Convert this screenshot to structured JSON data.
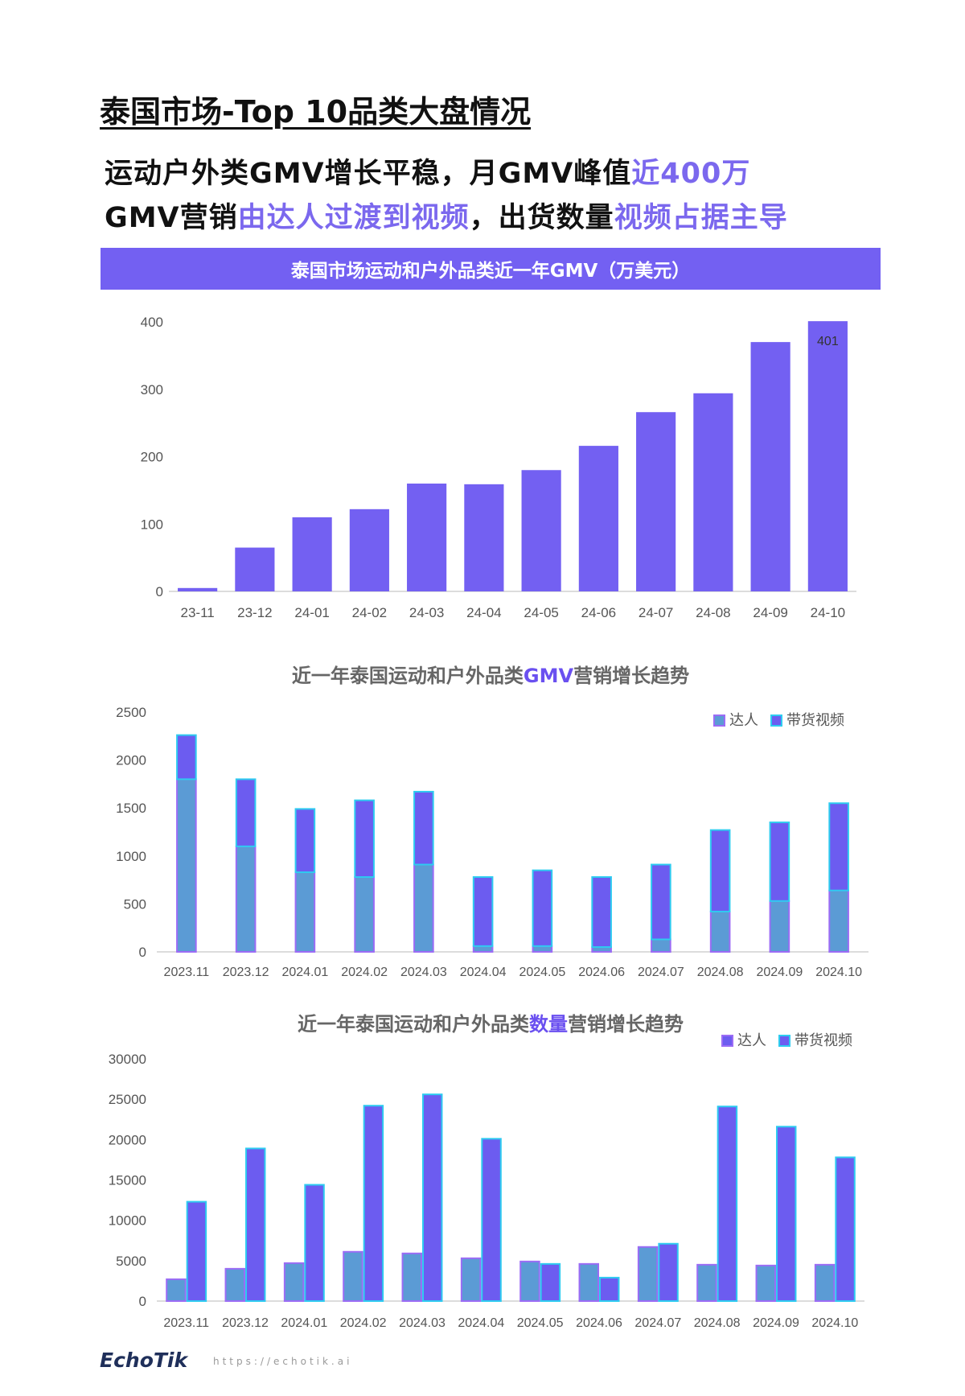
{
  "page": {
    "title": "泰国市场-Top 10品类大盘情况",
    "headline1_a": "运动户外类GMV增长平稳，月GMV峰值",
    "headline1_b": "近400万",
    "headline2_a": "GMV营销",
    "headline2_b": "由达人过渡到视频",
    "headline2_c": "，出货数量",
    "headline2_d": "视频占据主导",
    "footer_logo": "EchoTik",
    "footer_url": "https://echotik.ai"
  },
  "colors": {
    "primary": "#7360f2",
    "talent": "#5b9bd5",
    "video": "#6c5cf0",
    "talent_border": "#9b6cf5",
    "video_border": "#2ecbf0"
  },
  "chart_data": [
    {
      "type": "bar",
      "title": "泰国市场运动和户外品类近一年GMV（万美元）",
      "categories": [
        "23-11",
        "23-12",
        "24-01",
        "24-02",
        "24-03",
        "24-04",
        "24-05",
        "24-06",
        "24-07",
        "24-08",
        "24-09",
        "24-10"
      ],
      "values": [
        5,
        65,
        110,
        122,
        160,
        159,
        180,
        216,
        266,
        294,
        370,
        401
      ],
      "ylim": [
        0,
        400
      ],
      "yticks": [
        "0",
        "100",
        "200",
        "300",
        "400"
      ],
      "data_labels": [
        {
          "index": 11,
          "text": "401"
        }
      ],
      "grid": false
    },
    {
      "type": "bar",
      "stacked": true,
      "title_a": "近一年泰国运动和户外品类",
      "title_b": "GMV",
      "title_c": "营销增长趋势",
      "categories": [
        "2023.11",
        "2023.12",
        "2024.01",
        "2024.02",
        "2024.03",
        "2024.04",
        "2024.05",
        "2024.06",
        "2024.07",
        "2024.08",
        "2024.09",
        "2024.10"
      ],
      "series": [
        {
          "name": "达人",
          "values": [
            1800,
            1100,
            830,
            780,
            910,
            60,
            60,
            50,
            130,
            420,
            530,
            640
          ]
        },
        {
          "name": "带货视频",
          "values": [
            460,
            700,
            660,
            800,
            760,
            720,
            790,
            730,
            780,
            850,
            820,
            910
          ]
        }
      ],
      "ylim": [
        0,
        2500
      ],
      "yticks": [
        "0",
        "500",
        "1000",
        "1500",
        "2000",
        "2500"
      ],
      "legend": "top-right",
      "grid": false
    },
    {
      "type": "bar",
      "stacked": false,
      "title_a": "近一年泰国运动和户外品类",
      "title_b": "数量",
      "title_c": "营销增长趋势",
      "categories": [
        "2023.11",
        "2023.12",
        "2024.01",
        "2024.02",
        "2024.03",
        "2024.04",
        "2024.05",
        "2024.06",
        "2024.07",
        "2024.08",
        "2024.09",
        "2024.10"
      ],
      "series": [
        {
          "name": "达人",
          "values": [
            2700,
            4000,
            4700,
            6100,
            5900,
            5300,
            4900,
            4600,
            6700,
            4500,
            4400,
            4500
          ]
        },
        {
          "name": "带货视频",
          "values": [
            12300,
            18900,
            14400,
            24200,
            25600,
            20100,
            4600,
            2900,
            7100,
            24100,
            21600,
            17800
          ]
        }
      ],
      "ylim": [
        0,
        30000
      ],
      "yticks": [
        "0",
        "5000",
        "10000",
        "15000",
        "20000",
        "25000",
        "30000"
      ],
      "legend": "top-right",
      "grid": false
    }
  ]
}
